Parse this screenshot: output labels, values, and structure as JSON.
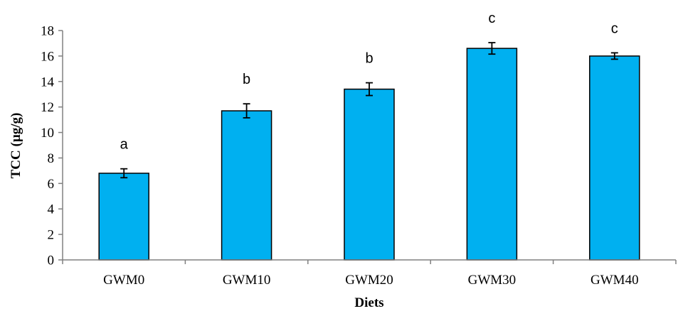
{
  "chart_data": {
    "type": "bar",
    "categories": [
      "GWM0",
      "GWM10",
      "GWM20",
      "GWM30",
      "GWM40"
    ],
    "values": [
      6.8,
      11.7,
      13.4,
      16.6,
      16.0
    ],
    "errors": [
      0.35,
      0.55,
      0.5,
      0.45,
      0.25
    ],
    "significance_labels": [
      "a",
      "b",
      "b",
      "c",
      "c"
    ],
    "xlabel": "Diets",
    "ylabel": "TCC (µg/g)",
    "ylim": [
      0,
      18
    ],
    "yticks": [
      "0",
      "2",
      "4",
      "6",
      "8",
      "10",
      "12",
      "14",
      "16",
      "18"
    ],
    "grid": false,
    "legend": "none",
    "colors": {
      "bar_fill": "#00B0F0",
      "bar_stroke": "#000000",
      "axis": "#808080",
      "error_bar": "#000000"
    }
  }
}
